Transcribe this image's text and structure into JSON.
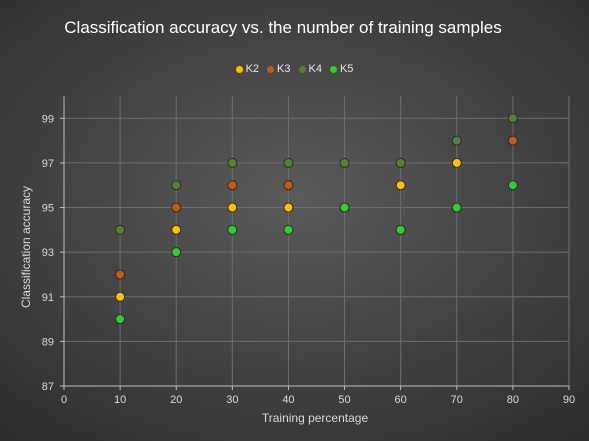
{
  "chart_data": {
    "type": "scatter",
    "title": "Classification accuracy vs. the number of training samples",
    "xlabel": "Training percentage",
    "ylabel": "Classification accuracy",
    "xlim": [
      0,
      90
    ],
    "ylim": [
      87,
      100
    ],
    "xticks": [
      0,
      10,
      20,
      30,
      40,
      50,
      60,
      70,
      80,
      90
    ],
    "yticks": [
      87,
      89,
      91,
      93,
      95,
      97,
      99
    ],
    "grid": true,
    "legend_position": "top-center",
    "x": [
      10,
      20,
      30,
      40,
      50,
      60,
      70,
      80
    ],
    "series": [
      {
        "name": "K2",
        "color": "#ffc000",
        "values": [
          91,
          94,
          95,
          95,
          95,
          96,
          97,
          98
        ]
      },
      {
        "name": "K3",
        "color": "#c55a11",
        "values": [
          92,
          95,
          96,
          96,
          95,
          97,
          98,
          98
        ]
      },
      {
        "name": "K4",
        "color": "#548235",
        "values": [
          94,
          96,
          97,
          97,
          97,
          97,
          98,
          99
        ]
      },
      {
        "name": "K5",
        "color": "#33cc33",
        "values": [
          90,
          93,
          94,
          94,
          95,
          94,
          95,
          96
        ]
      }
    ]
  }
}
